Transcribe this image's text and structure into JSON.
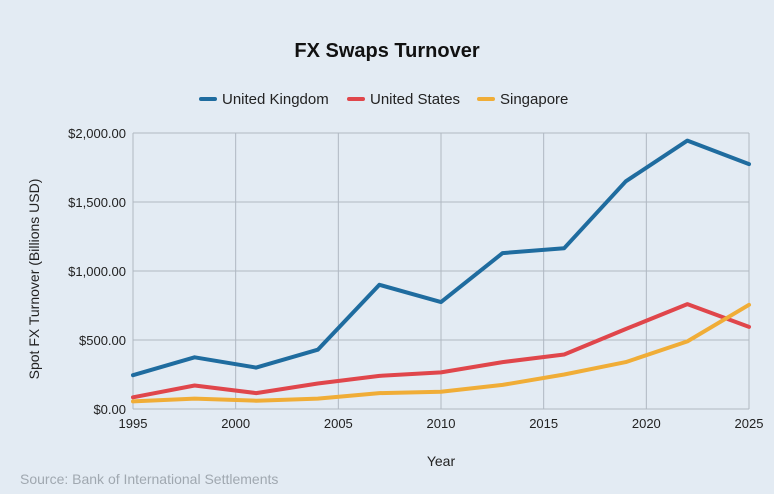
{
  "chart_data": {
    "type": "line",
    "title": "FX Swaps Turnover",
    "xlabel": "Year",
    "ylabel": "Spot FX Turnover (Billions USD)",
    "source": "Source: Bank of International Settlements",
    "xlim": [
      1995,
      2025
    ],
    "ylim": [
      0,
      2000
    ],
    "x_ticks": [
      "1995",
      "2000",
      "2005",
      "2010",
      "2015",
      "2020",
      "2025"
    ],
    "y_ticks": [
      "$0.00",
      "$500.00",
      "$1,000.00",
      "$1,500.00",
      "$2,000.00"
    ],
    "grid": true,
    "legend_position": "top-center",
    "series": [
      {
        "name": "United Kingdom",
        "color": "#1f6c9f",
        "x": [
          1995,
          1998,
          2001,
          2004,
          2007,
          2010,
          2013,
          2016,
          2019,
          2022,
          2025
        ],
        "y": [
          245,
          375,
          300,
          430,
          900,
          775,
          1130,
          1165,
          1650,
          1945,
          1775
        ]
      },
      {
        "name": "United States",
        "color": "#e0464b",
        "x": [
          1995,
          1998,
          2001,
          2004,
          2007,
          2010,
          2013,
          2016,
          2019,
          2022,
          2025
        ],
        "y": [
          85,
          170,
          115,
          185,
          240,
          265,
          340,
          395,
          580,
          760,
          595
        ]
      },
      {
        "name": "Singapore",
        "color": "#f0ad37",
        "x": [
          1995,
          1998,
          2001,
          2004,
          2007,
          2010,
          2013,
          2016,
          2019,
          2022,
          2025
        ],
        "y": [
          55,
          75,
          60,
          75,
          115,
          125,
          175,
          250,
          340,
          490,
          755
        ]
      }
    ]
  }
}
